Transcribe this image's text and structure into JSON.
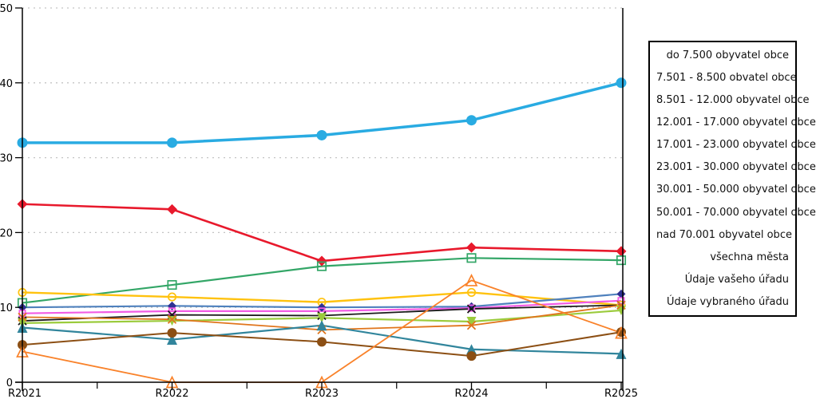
{
  "chart_data": {
    "type": "line",
    "title": "",
    "xlabel": "",
    "ylabel": "",
    "categories": [
      "R2021",
      "R2022",
      "R2023",
      "R2024",
      "R2025"
    ],
    "ylim": [
      0,
      50
    ],
    "yticks": [
      0,
      10,
      20,
      30,
      40,
      50
    ],
    "grid": "horizontal-dotted",
    "grid_color": "#c4c4c4",
    "axis_color": "#000000",
    "legend_position": "right-box",
    "series": [
      {
        "name": "do 7.500 obyvatel obce",
        "color": "#29ABE2",
        "marker": "circle",
        "marker_color": "#29ABE2",
        "marker_size": 13,
        "line_width": 3.5,
        "values": [
          32,
          32,
          33,
          35,
          40
        ]
      },
      {
        "name": "7.501 - 8.500 obvatel obce",
        "color": "#E8192C",
        "marker": "diamond",
        "marker_color": "#E8192C",
        "marker_size": 13,
        "line_width": 2.6,
        "values": [
          23.8,
          23.1,
          16.2,
          18,
          17.5
        ]
      },
      {
        "name": "8.501 - 12.000 obyvatel obce",
        "color": "#33A667",
        "marker": "square-open",
        "marker_color": "#33A667",
        "marker_size": 12,
        "line_width": 2.2,
        "values": [
          10.6,
          13,
          15.5,
          16.6,
          16.3
        ]
      },
      {
        "name": "12.001 - 17.000 obyvatel obce",
        "color": "#FFC20E",
        "marker": "circle-open",
        "marker_color": "#FFC20E",
        "marker_size": 11,
        "line_width": 2.4,
        "values": [
          12,
          11.4,
          10.7,
          12,
          10.3
        ]
      },
      {
        "name": "17.001 - 23.000 obyvatel obce",
        "color": "#4F81BD",
        "marker": "diamond",
        "marker_color": "#2E3192",
        "marker_size": 11,
        "line_width": 2.2,
        "values": [
          10,
          10.2,
          10,
          10.1,
          11.8
        ]
      },
      {
        "name": "23.001 - 30.000 obyvatel obce",
        "color": "#F25CE4",
        "marker": "square-open",
        "marker_color": "#F25CE4",
        "marker_size": 9,
        "line_width": 2.2,
        "values": [
          9.2,
          9.5,
          9.5,
          9.9,
          10.9
        ]
      },
      {
        "name": "30.001 - 50.000 obyvatel obce",
        "color": "#1A1A1A",
        "marker": "x",
        "marker_color": "#1A1A1A",
        "marker_size": 10,
        "line_width": 1.8,
        "values": [
          8.2,
          9,
          8.9,
          9.8,
          10.3
        ]
      },
      {
        "name": "50.001 - 70.000 obyvatel obce",
        "color": "#9BCB3C",
        "marker": "triangle-down",
        "marker_color": "#9BCB3C",
        "marker_size": 12,
        "line_width": 2.2,
        "values": [
          7.9,
          8.2,
          8.6,
          8.1,
          9.6
        ]
      },
      {
        "name": "nad 70.001 obyvatel obce",
        "color": "#E0751C",
        "marker": "x",
        "marker_color": "#E0751C",
        "marker_size": 10,
        "line_width": 1.8,
        "values": [
          8.7,
          8.4,
          7,
          7.6,
          10.3
        ]
      },
      {
        "name": "všechna města",
        "color": "#31859C",
        "marker": "triangle-up",
        "marker_color": "#31859C",
        "marker_size": 13,
        "line_width": 2.2,
        "values": [
          7.3,
          5.7,
          7.6,
          4.4,
          3.8
        ]
      },
      {
        "name": "Údaje vašeho úřadu",
        "color": "#8C4F14",
        "marker": "circle",
        "marker_color": "#8C4F14",
        "marker_size": 12,
        "line_width": 2.0,
        "values": [
          5,
          6.6,
          5.4,
          3.5,
          6.7
        ]
      },
      {
        "name": "Údaje vybraného úřadu",
        "color": "#F9822A",
        "marker": "triangle-open",
        "marker_color": "#F9822A",
        "marker_size": 13,
        "line_width": 1.8,
        "values": [
          4.1,
          0,
          0,
          13.6,
          6.6
        ]
      }
    ]
  }
}
